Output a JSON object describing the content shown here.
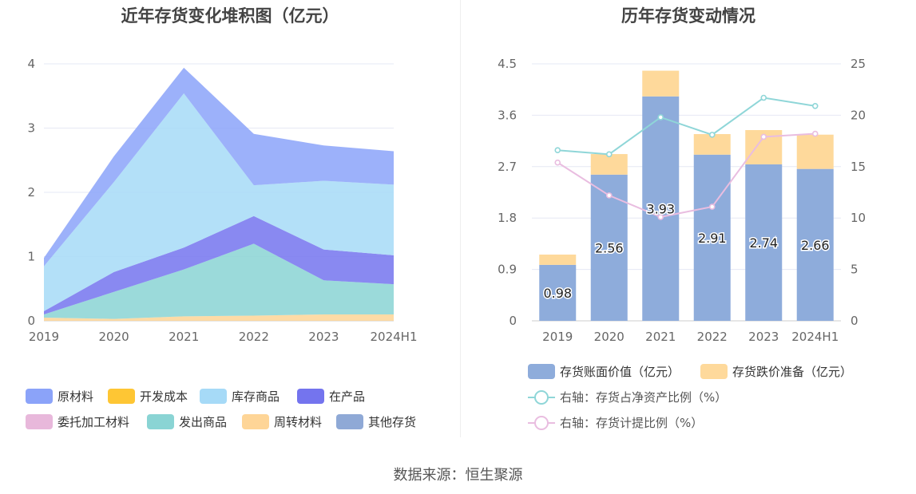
{
  "source_label": "数据来源：恒生聚源",
  "chart_data": [
    {
      "type": "area",
      "stacked": true,
      "title": "近年存货变化堆积图（亿元）",
      "categories": [
        "2019",
        "2020",
        "2021",
        "2022",
        "2023",
        "2024H1"
      ],
      "y_ticks": [
        "0",
        "1",
        "2",
        "3",
        "4"
      ],
      "ylim": [
        0,
        4
      ],
      "legend_position": "bottom",
      "series": [
        {
          "name": "原材料",
          "color": "#8ba3f9",
          "values": [
            0.13,
            0.4,
            0.4,
            0.8,
            0.55,
            0.52
          ]
        },
        {
          "name": "开发成本",
          "color": "#fec634",
          "values": [
            0,
            0,
            0,
            0,
            0,
            0
          ]
        },
        {
          "name": "库存商品",
          "color": "#a6daf7",
          "values": [
            0.7,
            1.4,
            2.4,
            0.48,
            1.07,
            1.1
          ]
        },
        {
          "name": "在产品",
          "color": "#7474ee",
          "values": [
            0.05,
            0.31,
            0.34,
            0.43,
            0.48,
            0.45
          ]
        },
        {
          "name": "委托加工材料",
          "color": "#e8b8db",
          "values": [
            0,
            0,
            0,
            0,
            0,
            0
          ]
        },
        {
          "name": "发出商品",
          "color": "#8ad4d4",
          "values": [
            0.05,
            0.42,
            0.73,
            1.12,
            0.53,
            0.47
          ]
        },
        {
          "name": "周转材料",
          "color": "#fed597",
          "values": [
            0.05,
            0.03,
            0.07,
            0.08,
            0.1,
            0.1
          ]
        },
        {
          "name": "其他存货",
          "color": "#8fa9d6",
          "values": [
            0,
            0,
            0,
            0,
            0,
            0
          ]
        }
      ]
    },
    {
      "type": "bar",
      "stacked": true,
      "title": "历年存货变动情况",
      "categories": [
        "2019",
        "2020",
        "2021",
        "2022",
        "2023",
        "2024H1"
      ],
      "y_left_ticks": [
        "0",
        "0.9",
        "1.8",
        "2.7",
        "3.6",
        "4.5"
      ],
      "y_right_ticks": [
        "0",
        "5",
        "10",
        "15",
        "20",
        "25"
      ],
      "ylim_left": [
        0,
        4.5
      ],
      "ylim_right": [
        0,
        25
      ],
      "legend_position": "bottom",
      "bar_series": [
        {
          "name": "存货账面价值（亿元）",
          "color": "#8eacdb",
          "values": [
            0.98,
            2.56,
            3.93,
            2.91,
            2.74,
            2.66
          ],
          "labels": [
            "0.98",
            "2.56",
            "3.93",
            "2.91",
            "2.74",
            "2.66"
          ]
        },
        {
          "name": "存货跌价准备（亿元）",
          "color": "#fed99b",
          "values": [
            0.18,
            0.36,
            0.45,
            0.36,
            0.6,
            0.6
          ]
        }
      ],
      "line_series": [
        {
          "name": "右轴：存货占净资产比例（%）",
          "color": "#8fd6d8",
          "values": [
            16.6,
            16.2,
            19.8,
            18.1,
            21.7,
            20.9
          ]
        },
        {
          "name": "右轴：存货计提比例（%）",
          "color": "#e9bde0",
          "values": [
            15.4,
            12.2,
            10.1,
            11.1,
            17.9,
            18.2
          ]
        }
      ]
    }
  ]
}
